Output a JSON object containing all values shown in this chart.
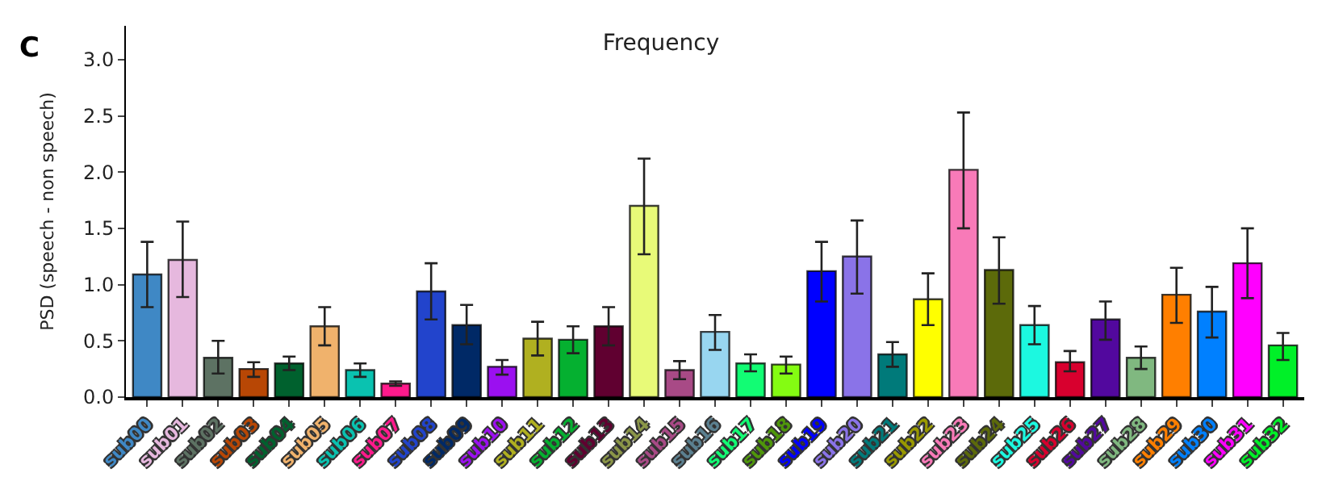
{
  "chart_data": {
    "type": "bar",
    "title": "Frequency",
    "ylabel": "PSD (speech - non speech)",
    "annotations": [
      "C"
    ],
    "categories": [
      "sub00",
      "sub01",
      "sub02",
      "sub03",
      "sub04",
      "sub05",
      "sub06",
      "sub07",
      "sub08",
      "sub09",
      "sub10",
      "sub11",
      "sub12",
      "sub13",
      "sub14",
      "sub15",
      "sub16",
      "sub17",
      "sub18",
      "sub19",
      "sub20",
      "sub21",
      "sub22",
      "sub23",
      "sub24",
      "sub25",
      "sub26",
      "sub27",
      "sub28",
      "sub29",
      "sub30",
      "sub31",
      "sub32"
    ],
    "values": [
      1.09,
      1.22,
      0.35,
      0.25,
      0.3,
      0.63,
      0.24,
      0.12,
      0.94,
      0.64,
      0.27,
      0.52,
      0.51,
      0.63,
      1.7,
      0.24,
      0.58,
      0.3,
      0.29,
      1.12,
      1.25,
      0.38,
      0.87,
      2.02,
      1.13,
      0.64,
      0.31,
      0.69,
      0.35,
      0.91,
      0.76,
      1.19,
      0.46
    ],
    "errors": [
      [
        0.8,
        1.38
      ],
      [
        0.89,
        1.56
      ],
      [
        0.21,
        0.5
      ],
      [
        0.18,
        0.31
      ],
      [
        0.24,
        0.36
      ],
      [
        0.46,
        0.8
      ],
      [
        0.18,
        0.3
      ],
      [
        0.1,
        0.14
      ],
      [
        0.69,
        1.19
      ],
      [
        0.47,
        0.82
      ],
      [
        0.2,
        0.33
      ],
      [
        0.37,
        0.67
      ],
      [
        0.39,
        0.63
      ],
      [
        0.46,
        0.8
      ],
      [
        1.27,
        2.12
      ],
      [
        0.16,
        0.32
      ],
      [
        0.42,
        0.73
      ],
      [
        0.23,
        0.38
      ],
      [
        0.21,
        0.36
      ],
      [
        0.85,
        1.38
      ],
      [
        0.92,
        1.57
      ],
      [
        0.27,
        0.49
      ],
      [
        0.64,
        1.1
      ],
      [
        1.5,
        2.53
      ],
      [
        0.83,
        1.42
      ],
      [
        0.47,
        0.81
      ],
      [
        0.23,
        0.41
      ],
      [
        0.51,
        0.85
      ],
      [
        0.25,
        0.45
      ],
      [
        0.66,
        1.15
      ],
      [
        0.53,
        0.98
      ],
      [
        0.88,
        1.5
      ],
      [
        0.33,
        0.57
      ]
    ],
    "colors": [
      "#3f88c5",
      "#e6b8de",
      "#5d7263",
      "#b84705",
      "#00612e",
      "#f0b26c",
      "#0ac2b0",
      "#ff1a8c",
      "#2244cc",
      "#002966",
      "#9b10f0",
      "#b0b020",
      "#05b030",
      "#600030",
      "#e8fa78",
      "#a84a86",
      "#98d6f0",
      "#12fc74",
      "#84fc12",
      "#0000ff",
      "#8a73e8",
      "#007a7a",
      "#ffff00",
      "#f87ab8",
      "#5c6a0a",
      "#1cf8e0",
      "#d8002e",
      "#52089e",
      "#80b880",
      "#ff7f00",
      "#0080ff",
      "#ff00ff",
      "#00f028"
    ],
    "ylim": [
      0,
      3.3
    ],
    "yticks": [
      {
        "value": 0,
        "label": "0.0"
      },
      {
        "value": 0.5,
        "label": "0.5"
      },
      {
        "value": 1,
        "label": "1.0"
      },
      {
        "value": 1.5,
        "label": "1.5"
      },
      {
        "value": 2,
        "label": "2.0"
      },
      {
        "value": 2.5,
        "label": "2.5"
      },
      {
        "value": 3,
        "label": "3.0"
      }
    ]
  }
}
